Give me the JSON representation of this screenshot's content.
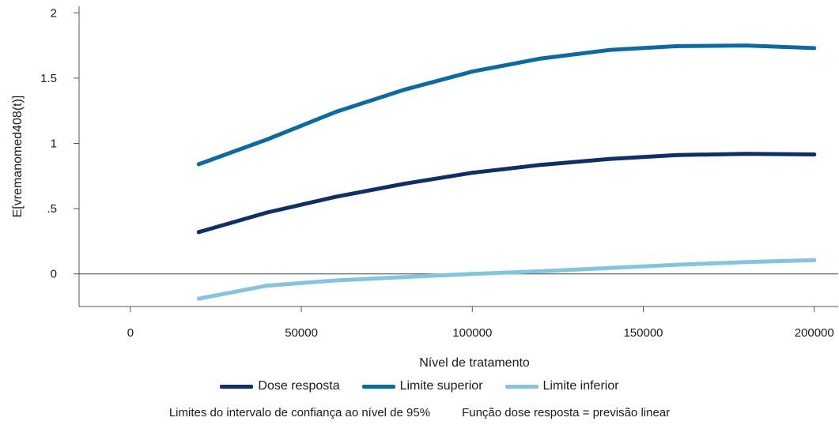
{
  "chart_data": {
    "type": "line",
    "xlabel": "Nível de tratamento",
    "ylabel": "E[vremanomed408(t)]",
    "xlim": [
      -15000,
      207000
    ],
    "ylim": [
      -0.25,
      2.05
    ],
    "xticks": [
      0,
      50000,
      100000,
      150000,
      200000
    ],
    "xtick_labels": [
      "0",
      "50000",
      "100000",
      "150000",
      "200000"
    ],
    "yticks": [
      0,
      0.5,
      1,
      1.5,
      2
    ],
    "ytick_labels": [
      "0",
      ".5",
      "1",
      "1.5",
      "2"
    ],
    "reference_line_y": 0,
    "grid": false,
    "legend_position": "bottom",
    "x": [
      20000,
      40000,
      60000,
      80000,
      100000,
      120000,
      140000,
      160000,
      180000,
      200000
    ],
    "series": [
      {
        "name": "Dose resposta",
        "color": "#0d2f6b",
        "values": [
          0.32,
          0.47,
          0.59,
          0.69,
          0.775,
          0.835,
          0.88,
          0.91,
          0.92,
          0.915
        ]
      },
      {
        "name": "Limite superior",
        "color": "#0a6aa6",
        "values": [
          0.84,
          1.03,
          1.24,
          1.41,
          1.55,
          1.65,
          1.715,
          1.745,
          1.75,
          1.73
        ]
      },
      {
        "name": "Limite inferior",
        "color": "#82c4e2",
        "values": [
          -0.19,
          -0.09,
          -0.05,
          -0.025,
          0.0,
          0.02,
          0.045,
          0.07,
          0.09,
          0.105
        ]
      }
    ],
    "notes": [
      "Limites do intervalo de confiança ao nível de 95%",
      "Função dose resposta = previsão linear"
    ]
  }
}
